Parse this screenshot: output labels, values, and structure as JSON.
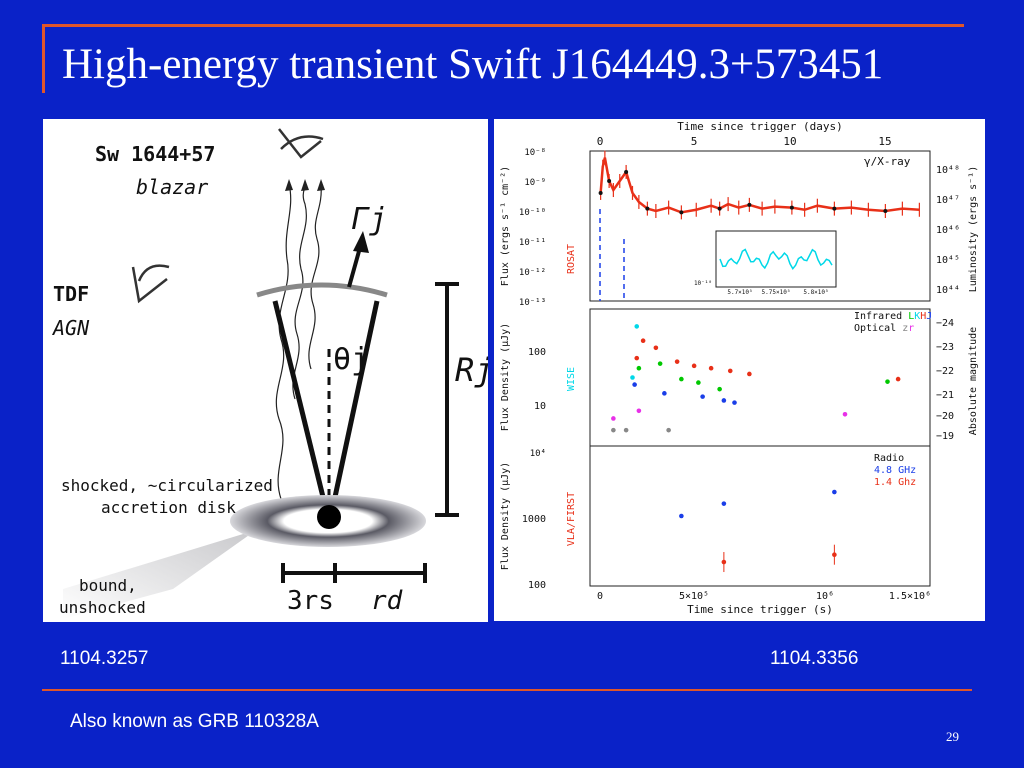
{
  "title": "High-energy transient Swift J164449.3+573451",
  "colors": {
    "background": "#0a22c8",
    "accent": "#e0562a",
    "xray": "#e83018",
    "cyan": "#00d8e8"
  },
  "left_figure": {
    "sw_label": "Sw 1644+57",
    "blazar_label": "blazar",
    "tdf_label": "TDF",
    "agn_label": "AGN",
    "gamma_label": "Γj",
    "theta_label": "θj",
    "r_label": "Rj",
    "disk_label_1": "shocked, ~circularized",
    "disk_label_2": "accretion disk",
    "bound_label_1": "bound,",
    "bound_label_2": "unshocked",
    "rs_label": "3rs",
    "rd_label": "rd"
  },
  "right_figure": {
    "top_axis_title": "Time since trigger (days)",
    "top_ticks": [
      "0",
      "5",
      "10",
      "15"
    ],
    "bottom_axis_title": "Time since trigger (s)",
    "bottom_ticks": [
      "0",
      "5×10⁵",
      "10⁶",
      "1.5×10⁶"
    ],
    "panel1": {
      "ylabel": "Flux (ergs s⁻¹ cm⁻²)",
      "ylabel_right": "Luminosity (ergs s⁻¹)",
      "yticks": [
        "10⁻⁸",
        "10⁻⁹",
        "10⁻¹⁰",
        "10⁻¹¹",
        "10⁻¹²",
        "10⁻¹³"
      ],
      "yticks_right": [
        "10⁴⁸",
        "10⁴⁷",
        "10⁴⁶",
        "10⁴⁵",
        "10⁴⁴"
      ],
      "legend": "γ/X-ray",
      "side_label": "ROSAT",
      "inset_ticks": [
        "10⁻¹⁰",
        "5.7×10⁵",
        "5.75×10⁵",
        "5.8×10⁵"
      ]
    },
    "panel2": {
      "ylabel": "Flux Density (μJy)",
      "ylabel_right": "Absolute magnitude",
      "yticks": [
        "100",
        "10"
      ],
      "yticks_right": [
        "−24",
        "−23",
        "−22",
        "−21",
        "−20",
        "−19"
      ],
      "legend_infrared": "Infrared",
      "legend_l": "L",
      "legend_k": "K",
      "legend_h": "H",
      "legend_j": "J",
      "legend_optical": "Optical",
      "legend_z": "z",
      "legend_r": "r",
      "side_label": "WISE"
    },
    "panel3": {
      "ylabel": "Flux Density (μJy)",
      "yticks": [
        "10⁴",
        "1000",
        "100"
      ],
      "legend_title": "Radio",
      "legend_48": "4.8 GHz",
      "legend_14": "1.4 Ghz",
      "side_label": "VLA/FIRST"
    }
  },
  "chart_data": [
    {
      "type": "line",
      "title": "",
      "xlabel": "Time since trigger (s)",
      "ylabel": "Flux (ergs s⁻¹ cm⁻²)",
      "yscale": "log",
      "xlim": [
        -50000,
        1550000
      ],
      "ylim": [
        1e-13,
        1e-08
      ],
      "series": [
        {
          "name": "γ/X-ray",
          "x": [
            0,
            10000,
            20000,
            40000,
            60000,
            90000,
            120000,
            150000,
            180000,
            220000,
            260000,
            320000,
            380000,
            450000,
            520000,
            560000,
            600000,
            650000,
            700000,
            760000,
            820000,
            900000,
            960000,
            1020000,
            1100000,
            1180000,
            1260000,
            1340000,
            1420000,
            1500000
          ],
          "y": [
            4e-10,
            3e-09,
            6e-09,
            1e-09,
            5e-10,
            1e-09,
            2e-09,
            4e-10,
            2e-10,
            1.2e-10,
            1e-10,
            1.3e-10,
            9e-11,
            1.1e-10,
            1.5e-10,
            1.2e-10,
            1.7e-10,
            1.3e-10,
            1.6e-10,
            1.2e-10,
            1.4e-10,
            1.3e-10,
            1.1e-10,
            1.5e-10,
            1.2e-10,
            1.3e-10,
            1.1e-10,
            1e-10,
            1.2e-10,
            1.1e-10
          ]
        }
      ]
    },
    {
      "type": "scatter",
      "title": "",
      "xlabel": "Time since trigger (s)",
      "ylabel": "Flux Density (μJy)",
      "yscale": "log",
      "xlim": [
        -50000,
        1550000
      ],
      "ylim": [
        1.5,
        600
      ],
      "series": [
        {
          "name": "",
          "color": "#e83018",
          "x": [
            170000,
            200000,
            260000,
            360000,
            440000,
            520000,
            610000,
            700000,
            1400000
          ],
          "y": [
            70,
            150,
            110,
            60,
            50,
            45,
            40,
            35,
            28
          ]
        },
        {
          "name": "",
          "color": "#00c800",
          "x": [
            180000,
            280000,
            380000,
            460000,
            560000,
            1350000
          ],
          "y": [
            45,
            55,
            28,
            24,
            18,
            25
          ]
        },
        {
          "name": "",
          "color": "#00d8e8",
          "x": [
            150000,
            170000
          ],
          "y": [
            30,
            280
          ]
        },
        {
          "name": "",
          "color": "#1a3ee8",
          "x": [
            160000,
            300000,
            480000,
            580000,
            630000
          ],
          "y": [
            22,
            15,
            13,
            11,
            10
          ]
        },
        {
          "name": "",
          "color": "#e830e8",
          "x": [
            60000,
            180000,
            1150000
          ],
          "y": [
            5,
            7,
            6
          ]
        },
        {
          "name": "",
          "color": "#888888",
          "x": [
            60000,
            120000,
            320000
          ],
          "y": [
            3,
            3,
            3
          ]
        }
      ]
    },
    {
      "type": "scatter",
      "title": "",
      "xlabel": "Time since trigger (s)",
      "ylabel": "Flux Density (μJy)",
      "yscale": "log",
      "xlim": [
        -50000,
        1550000
      ],
      "ylim": [
        100,
        10000
      ],
      "series": [
        {
          "name": "4.8 GHz",
          "color": "#1a3ee8",
          "x": [
            380000,
            580000,
            1100000
          ],
          "y": [
            1000,
            1500,
            2200
          ]
        },
        {
          "name": "1.4 Ghz",
          "color": "#e83018",
          "x": [
            580000,
            1100000
          ],
          "y": [
            220,
            280
          ]
        }
      ]
    }
  ],
  "captions": {
    "left_ref": "1104.3257",
    "right_ref": "1104.3356",
    "footer": "Also known as GRB 110328A",
    "page_number": "29"
  }
}
